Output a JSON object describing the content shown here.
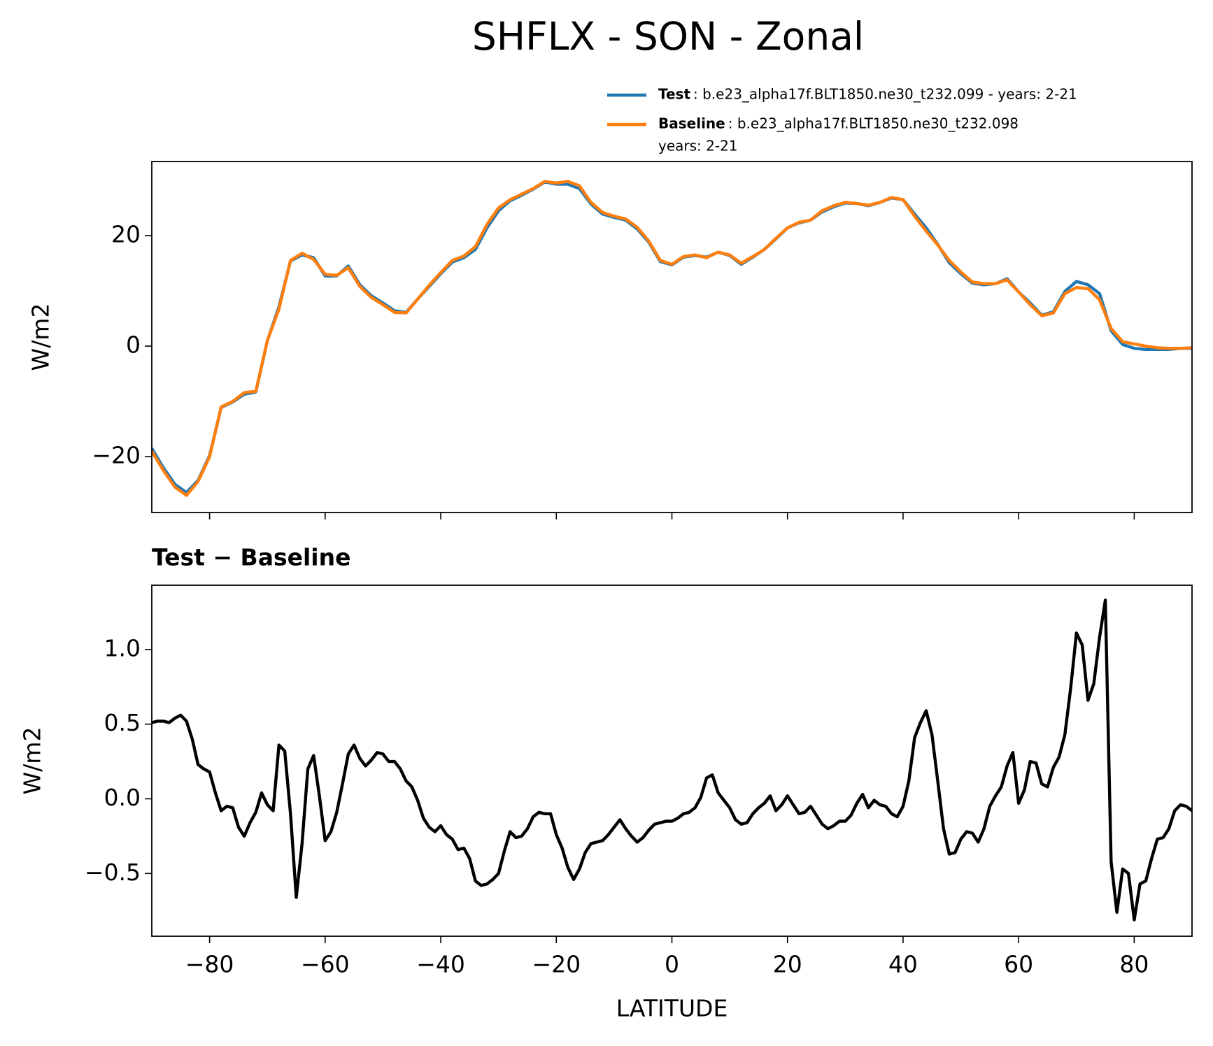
{
  "title": "SHFLX - SON - Zonal",
  "chart_data": [
    {
      "type": "line",
      "ylabel": "W/m2",
      "x": [
        -90,
        -88,
        -86,
        -84,
        -82,
        -80,
        -78,
        -76,
        -74,
        -72,
        -70,
        -68,
        -66,
        -64,
        -62,
        -60,
        -58,
        -56,
        -54,
        -52,
        -50,
        -48,
        -46,
        -44,
        -42,
        -40,
        -38,
        -36,
        -34,
        -32,
        -30,
        -28,
        -26,
        -24,
        -22,
        -20,
        -18,
        -16,
        -14,
        -12,
        -10,
        -8,
        -6,
        -4,
        -2,
        0,
        2,
        4,
        6,
        8,
        10,
        12,
        14,
        16,
        18,
        20,
        22,
        24,
        26,
        28,
        30,
        32,
        34,
        36,
        38,
        40,
        42,
        44,
        46,
        48,
        50,
        52,
        54,
        56,
        58,
        60,
        62,
        64,
        66,
        68,
        70,
        72,
        74,
        76,
        78,
        80,
        82,
        84,
        86,
        88,
        90
      ],
      "series": [
        {
          "name": "Test",
          "description": [
            ": b.e23_alpha17f.BLT1850.ne30_t232.099 - years: 2-21"
          ],
          "color": "#1f77b4",
          "values": [
            -18.5,
            -22,
            -25,
            -26.5,
            -24.3,
            -19.8,
            -11.1,
            -10.1,
            -8.7,
            -8.3,
            1.0,
            7.1,
            15.4,
            16.5,
            16.0,
            12.7,
            12.7,
            14.5,
            11.1,
            9.1,
            7.8,
            6.4,
            6.1,
            8.5,
            10.8,
            13.1,
            15.2,
            16.0,
            17.5,
            21.4,
            24.5,
            26.3,
            27.3,
            28.4,
            29.7,
            29.3,
            29.3,
            28.5,
            25.7,
            23.9,
            23.3,
            22.8,
            21.2,
            18.8,
            15.3,
            14.7,
            16.1,
            16.4,
            16.1,
            17.0,
            16.4,
            14.8,
            16.1,
            17.5,
            19.4,
            21.4,
            22.3,
            22.8,
            24.3,
            25.2,
            25.9,
            25.8,
            25.4,
            26.0,
            26.8,
            26.5,
            23.9,
            21.4,
            18.4,
            15.1,
            13.1,
            11.4,
            11.1,
            11.3,
            12.2,
            9.8,
            7.8,
            5.6,
            6.2,
            9.9,
            11.7,
            11.1,
            9.5,
            2.8,
            0.3,
            -0.4,
            -0.6,
            -0.6,
            -0.6,
            -0.4,
            -0.4
          ]
        },
        {
          "name": "Baseline",
          "description": [
            ": b.e23_alpha17f.BLT1850.ne30_t232.098",
            "years: 2-21"
          ],
          "color": "#ff7f0e",
          "values": [
            -19,
            -22.5,
            -25.5,
            -27,
            -24.5,
            -20,
            -11,
            -10,
            -8.4,
            -8.2,
            1,
            6.7,
            15.5,
            16.8,
            15.7,
            13,
            12.8,
            14.2,
            10.8,
            8.8,
            7.5,
            6.1,
            6,
            8.5,
            11,
            13.3,
            15.5,
            16.3,
            18,
            22,
            25,
            26.5,
            27.5,
            28.5,
            29.8,
            29.5,
            29.8,
            29,
            26,
            24.2,
            23.5,
            23,
            21.5,
            19,
            15.5,
            14.8,
            16.2,
            16.5,
            16,
            17,
            16.5,
            15,
            16.2,
            17.5,
            19.5,
            21.4,
            22.4,
            22.8,
            24.5,
            25.4,
            26,
            25.8,
            25.5,
            26,
            26.9,
            26.5,
            23.5,
            20.8,
            18.3,
            15.5,
            13.4,
            11.6,
            11.3,
            11.3,
            12,
            9.8,
            7.5,
            5.5,
            6,
            9.5,
            10.6,
            10.4,
            8.4,
            3.2,
            0.8,
            0.4,
            0,
            -0.3,
            -0.4,
            -0.4,
            -0.3
          ]
        }
      ],
      "xlim": [
        -90,
        90
      ],
      "xticks": [
        -80,
        -60,
        -40,
        -20,
        0,
        20,
        40,
        60,
        80
      ],
      "show_xtick_labels": false,
      "ylim": [
        -30.1,
        33.4
      ],
      "yticks": [
        {
          "value": -20,
          "label": "−20"
        },
        0,
        20
      ]
    },
    {
      "type": "line",
      "subtitle": "Test − Baseline",
      "ylabel": "W/m2",
      "xlabel": "LATITUDE",
      "x": [
        -90,
        -89,
        -88,
        -87,
        -86,
        -85,
        -84,
        -83,
        -82,
        -81,
        -80,
        -79,
        -78,
        -77,
        -76,
        -75,
        -74,
        -73,
        -72,
        -71,
        -70,
        -69,
        -68,
        -67,
        -66,
        -65,
        -64,
        -63,
        -62,
        -61,
        -60,
        -59,
        -58,
        -57,
        -56,
        -55,
        -54,
        -53,
        -52,
        -51,
        -50,
        -49,
        -48,
        -47,
        -46,
        -45,
        -44,
        -43,
        -42,
        -41,
        -40,
        -39,
        -38,
        -37,
        -36,
        -35,
        -34,
        -33,
        -32,
        -31,
        -30,
        -29,
        -28,
        -27,
        -26,
        -25,
        -24,
        -23,
        -22,
        -21,
        -20,
        -19,
        -18,
        -17,
        -16,
        -15,
        -14,
        -13,
        -12,
        -11,
        -10,
        -9,
        -8,
        -7,
        -6,
        -5,
        -4,
        -3,
        -2,
        -1,
        0,
        1,
        2,
        3,
        4,
        5,
        6,
        7,
        8,
        9,
        10,
        11,
        12,
        13,
        14,
        15,
        16,
        17,
        18,
        19,
        20,
        21,
        22,
        23,
        24,
        25,
        26,
        27,
        28,
        29,
        30,
        31,
        32,
        33,
        34,
        35,
        36,
        37,
        38,
        39,
        40,
        41,
        42,
        43,
        44,
        45,
        46,
        47,
        48,
        49,
        50,
        51,
        52,
        53,
        54,
        55,
        56,
        57,
        58,
        59,
        60,
        61,
        62,
        63,
        64,
        65,
        66,
        67,
        68,
        69,
        70,
        71,
        72,
        73,
        74,
        75,
        76,
        77,
        78,
        79,
        80,
        81,
        82,
        83,
        84,
        85,
        86,
        87,
        88,
        89,
        90
      ],
      "series": [
        {
          "color": "#000000",
          "values": [
            0.51,
            0.52,
            0.52,
            0.51,
            0.54,
            0.56,
            0.52,
            0.4,
            0.23,
            0.2,
            0.18,
            0.04,
            -0.08,
            -0.05,
            -0.06,
            -0.19,
            -0.25,
            -0.16,
            -0.09,
            0.04,
            -0.04,
            -0.08,
            0.36,
            0.32,
            -0.1,
            -0.66,
            -0.3,
            0.2,
            0.29,
            0.02,
            -0.28,
            -0.22,
            -0.09,
            0.1,
            0.3,
            0.36,
            0.27,
            0.22,
            0.26,
            0.31,
            0.3,
            0.25,
            0.25,
            0.2,
            0.12,
            0.08,
            -0.01,
            -0.13,
            -0.19,
            -0.22,
            -0.18,
            -0.24,
            -0.27,
            -0.34,
            -0.33,
            -0.4,
            -0.55,
            -0.58,
            -0.57,
            -0.54,
            -0.5,
            -0.35,
            -0.22,
            -0.26,
            -0.25,
            -0.2,
            -0.12,
            -0.09,
            -0.1,
            -0.1,
            -0.24,
            -0.33,
            -0.46,
            -0.54,
            -0.47,
            -0.36,
            -0.3,
            -0.29,
            -0.28,
            -0.24,
            -0.19,
            -0.14,
            -0.2,
            -0.25,
            -0.29,
            -0.26,
            -0.21,
            -0.17,
            -0.16,
            -0.15,
            -0.15,
            -0.13,
            -0.1,
            -0.09,
            -0.06,
            0.01,
            0.14,
            0.16,
            0.04,
            -0.01,
            -0.06,
            -0.14,
            -0.17,
            -0.16,
            -0.1,
            -0.06,
            -0.03,
            0.02,
            -0.08,
            -0.04,
            0.02,
            -0.04,
            -0.1,
            -0.09,
            -0.05,
            -0.11,
            -0.17,
            -0.2,
            -0.18,
            -0.15,
            -0.15,
            -0.11,
            -0.03,
            0.03,
            -0.06,
            -0.01,
            -0.04,
            -0.05,
            -0.1,
            -0.12,
            -0.05,
            0.12,
            0.41,
            0.51,
            0.59,
            0.43,
            0.12,
            -0.2,
            -0.37,
            -0.36,
            -0.27,
            -0.22,
            -0.23,
            -0.29,
            -0.2,
            -0.05,
            0.02,
            0.08,
            0.22,
            0.31,
            -0.03,
            0.06,
            0.25,
            0.24,
            0.1,
            0.08,
            0.21,
            0.28,
            0.43,
            0.74,
            1.11,
            1.03,
            0.66,
            0.77,
            1.08,
            1.33,
            -0.42,
            -0.76,
            -0.47,
            -0.5,
            -0.81,
            -0.57,
            -0.55,
            -0.4,
            -0.27,
            -0.26,
            -0.2,
            -0.08,
            -0.04,
            -0.05,
            -0.08
          ]
        }
      ],
      "xlim": [
        -90,
        90
      ],
      "xticks": [
        {
          "value": -80,
          "label": "−80"
        },
        {
          "value": -60,
          "label": "−60"
        },
        {
          "value": -40,
          "label": "−40"
        },
        {
          "value": -20,
          "label": "−20"
        },
        0,
        20,
        40,
        60,
        80
      ],
      "show_xtick_labels": true,
      "ylim": [
        -0.92,
        1.43
      ],
      "yticks": [
        {
          "value": -0.5,
          "label": "−0.5"
        },
        {
          "value": 0,
          "label": "0.0"
        },
        0.5,
        {
          "value": 1,
          "label": "1.0"
        }
      ]
    }
  ]
}
